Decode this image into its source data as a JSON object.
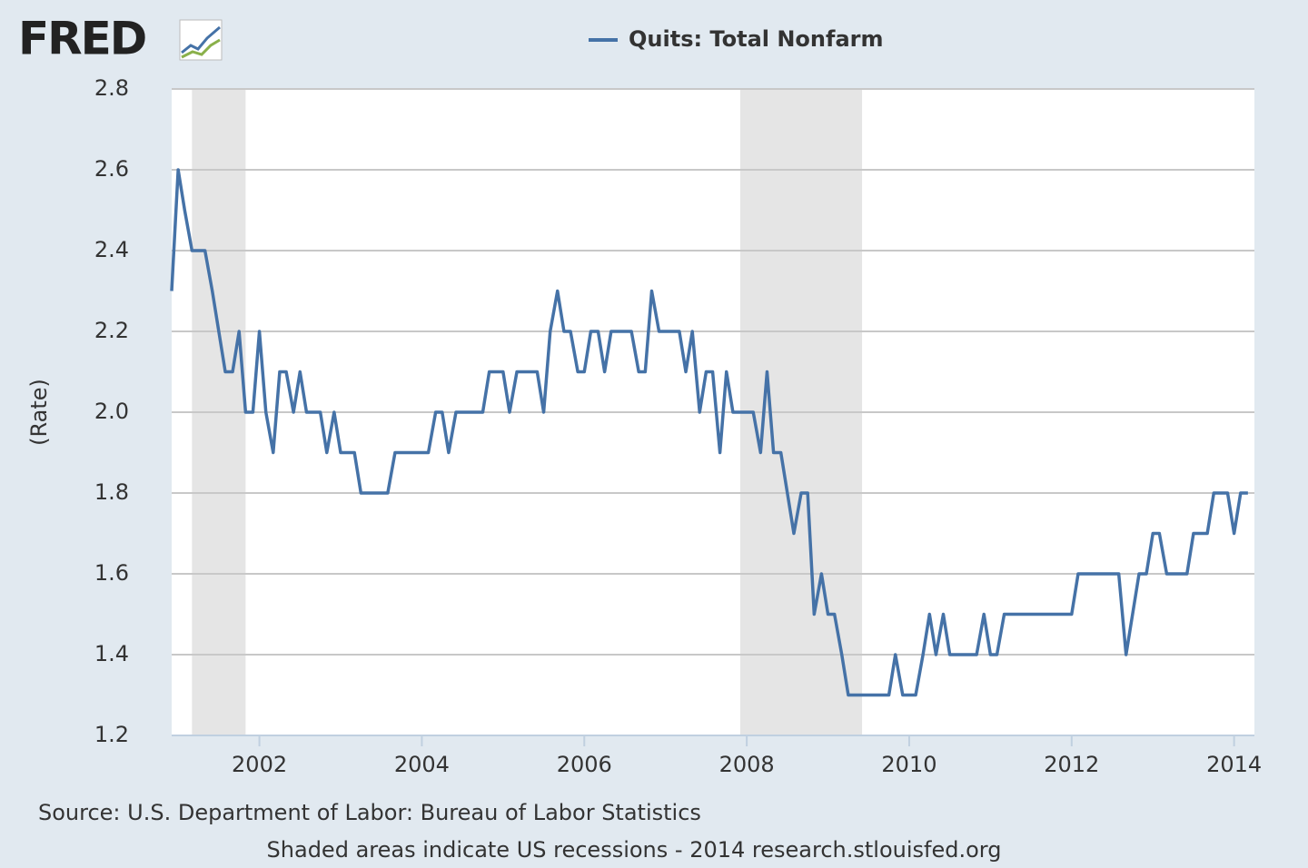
{
  "chart_data": {
    "type": "line",
    "logo": "FRED",
    "y_label": "(Rate)",
    "source": "Source: U.S. Department of Labor: Bureau of Labor Statistics",
    "note": "Shaded areas indicate US recessions - 2014 research.stlouisfed.org",
    "recessions": [
      [
        2001.17,
        2001.83
      ],
      [
        2007.92,
        2009.42
      ]
    ],
    "recession_color": "#e5e5e5",
    "grid": true,
    "xlim": [
      2000.92,
      2014.25
    ],
    "xticks": [
      2002,
      2004,
      2006,
      2008,
      2010,
      2012,
      2014
    ],
    "ylim": [
      1.2,
      2.8
    ],
    "yticks": [
      1.2,
      1.4,
      1.6,
      1.8,
      {
        "value": 2,
        "label": "2.0"
      },
      2.2,
      2.4,
      2.6,
      2.8
    ],
    "x": [
      2000.92,
      2001,
      2001.08,
      2001.17,
      2001.25,
      2001.33,
      2001.42,
      2001.5,
      2001.58,
      2001.67,
      2001.75,
      2001.83,
      2001.92,
      2002,
      2002.08,
      2002.17,
      2002.25,
      2002.33,
      2002.42,
      2002.5,
      2002.58,
      2002.67,
      2002.75,
      2002.83,
      2002.92,
      2003,
      2003.08,
      2003.17,
      2003.25,
      2003.33,
      2003.42,
      2003.5,
      2003.58,
      2003.67,
      2003.75,
      2003.83,
      2003.92,
      2004,
      2004.08,
      2004.17,
      2004.25,
      2004.33,
      2004.42,
      2004.5,
      2004.58,
      2004.67,
      2004.75,
      2004.83,
      2004.92,
      2005,
      2005.08,
      2005.17,
      2005.25,
      2005.33,
      2005.42,
      2005.5,
      2005.58,
      2005.67,
      2005.75,
      2005.83,
      2005.92,
      2006,
      2006.08,
      2006.17,
      2006.25,
      2006.33,
      2006.42,
      2006.5,
      2006.58,
      2006.67,
      2006.75,
      2006.83,
      2006.92,
      2007,
      2007.08,
      2007.17,
      2007.25,
      2007.33,
      2007.42,
      2007.5,
      2007.58,
      2007.67,
      2007.75,
      2007.83,
      2007.92,
      2008,
      2008.08,
      2008.17,
      2008.25,
      2008.33,
      2008.42,
      2008.5,
      2008.58,
      2008.67,
      2008.75,
      2008.83,
      2008.92,
      2009,
      2009.08,
      2009.17,
      2009.25,
      2009.33,
      2009.42,
      2009.5,
      2009.58,
      2009.67,
      2009.75,
      2009.83,
      2009.92,
      2010,
      2010.08,
      2010.17,
      2010.25,
      2010.33,
      2010.42,
      2010.5,
      2010.58,
      2010.67,
      2010.75,
      2010.83,
      2010.92,
      2011,
      2011.08,
      2011.17,
      2011.25,
      2011.33,
      2011.42,
      2011.5,
      2011.58,
      2011.67,
      2011.75,
      2011.83,
      2011.92,
      2012,
      2012.08,
      2012.17,
      2012.25,
      2012.33,
      2012.42,
      2012.5,
      2012.58,
      2012.67,
      2012.75,
      2012.83,
      2012.92,
      2013,
      2013.08,
      2013.17,
      2013.25,
      2013.33,
      2013.42,
      2013.5,
      2013.58,
      2013.67,
      2013.75,
      2013.83,
      2013.92,
      2014,
      2014.08,
      2014.17
    ],
    "series": [
      {
        "name": "Quits: Total Nonfarm",
        "color": "#4572a7",
        "values": [
          2.3,
          2.6,
          2.5,
          2.4,
          2.4,
          2.4,
          2.3,
          2.2,
          2.1,
          2.1,
          2.2,
          2.0,
          2.0,
          2.2,
          2.0,
          1.9,
          2.1,
          2.1,
          2.0,
          2.1,
          2.0,
          2.0,
          2.0,
          1.9,
          2.0,
          1.9,
          1.9,
          1.9,
          1.8,
          1.8,
          1.8,
          1.8,
          1.8,
          1.9,
          1.9,
          1.9,
          1.9,
          1.9,
          1.9,
          2.0,
          2.0,
          1.9,
          2.0,
          2.0,
          2.0,
          2.0,
          2.0,
          2.1,
          2.1,
          2.1,
          2.0,
          2.1,
          2.1,
          2.1,
          2.1,
          2.0,
          2.2,
          2.3,
          2.2,
          2.2,
          2.1,
          2.1,
          2.2,
          2.2,
          2.1,
          2.2,
          2.2,
          2.2,
          2.2,
          2.1,
          2.1,
          2.3,
          2.2,
          2.2,
          2.2,
          2.2,
          2.1,
          2.2,
          2.0,
          2.1,
          2.1,
          1.9,
          2.1,
          2.0,
          2.0,
          2.0,
          2.0,
          1.9,
          2.1,
          1.9,
          1.9,
          1.8,
          1.7,
          1.8,
          1.8,
          1.5,
          1.6,
          1.5,
          1.5,
          1.4,
          1.3,
          1.3,
          1.3,
          1.3,
          1.3,
          1.3,
          1.3,
          1.4,
          1.3,
          1.3,
          1.3,
          1.4,
          1.5,
          1.4,
          1.5,
          1.4,
          1.4,
          1.4,
          1.4,
          1.4,
          1.5,
          1.4,
          1.4,
          1.5,
          1.5,
          1.5,
          1.5,
          1.5,
          1.5,
          1.5,
          1.5,
          1.5,
          1.5,
          1.5,
          1.6,
          1.6,
          1.6,
          1.6,
          1.6,
          1.6,
          1.6,
          1.4,
          1.5,
          1.6,
          1.6,
          1.7,
          1.7,
          1.6,
          1.6,
          1.6,
          1.6,
          1.7,
          1.7,
          1.7,
          1.8,
          1.8,
          1.8,
          1.7,
          1.8,
          1.8
        ]
      }
    ]
  }
}
